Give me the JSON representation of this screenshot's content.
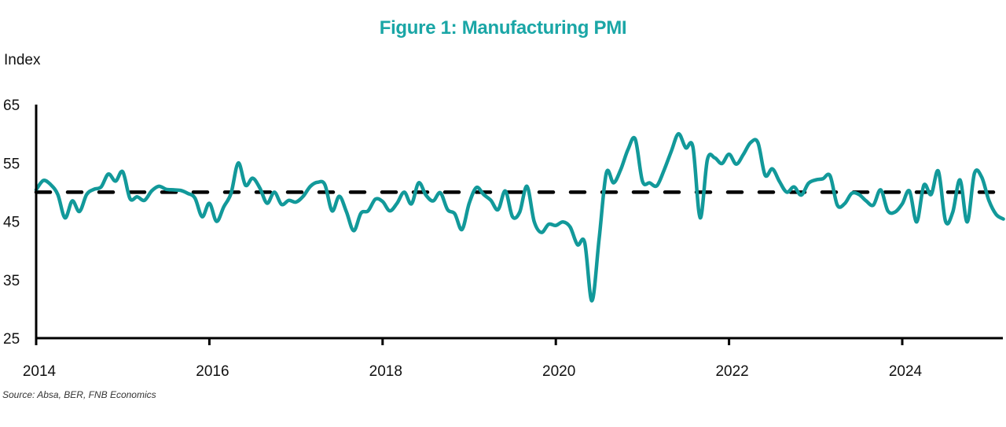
{
  "chart_data": {
    "type": "line",
    "title": "Figure 1: Manufacturing PMI",
    "ylabel": "Index",
    "xlabel": "",
    "source": "Source: Absa, BER, FNB Economics",
    "ylim": [
      25,
      65
    ],
    "yticks": [
      25,
      35,
      45,
      55,
      65
    ],
    "xlim": [
      2014.0,
      2025.17
    ],
    "xticks": [
      2014,
      2016,
      2018,
      2020,
      2022,
      2024
    ],
    "grid": false,
    "legend": "none",
    "reference_line": {
      "value": 50,
      "style": "dashed",
      "color": "#000000"
    },
    "series": [
      {
        "name": "Manufacturing PMI",
        "color": "#12999a",
        "start": "2014-01",
        "frequency": "monthly",
        "values": [
          50.4,
          52.0,
          51.3,
          49.6,
          45.6,
          48.5,
          46.7,
          49.6,
          50.5,
          50.9,
          53.1,
          51.9,
          53.5,
          48.9,
          49.2,
          48.6,
          50.2,
          51.0,
          50.5,
          50.4,
          50.3,
          49.8,
          49.0,
          45.8,
          48.1,
          45.0,
          47.5,
          49.8,
          55.0,
          51.2,
          52.4,
          50.7,
          48.1,
          50.0,
          47.9,
          48.6,
          48.3,
          49.3,
          51.0,
          51.7,
          51.3,
          46.8,
          49.3,
          46.6,
          43.4,
          46.4,
          46.8,
          48.8,
          48.4,
          46.8,
          48.1,
          50.0,
          48.0,
          51.6,
          49.5,
          48.5,
          49.9,
          47.0,
          46.3,
          43.6,
          48.1,
          50.8,
          49.6,
          48.6,
          47.0,
          50.2,
          45.8,
          46.6,
          51.0,
          45.0,
          43.1,
          44.5,
          44.3,
          44.9,
          44.0,
          41.0,
          41.4,
          31.4,
          42.0,
          53.3,
          51.6,
          53.9,
          57.3,
          59.1,
          51.9,
          51.6,
          51.1,
          53.8,
          57.0,
          60.0,
          57.6,
          57.7,
          45.6,
          55.6,
          55.9,
          54.9,
          56.5,
          54.8,
          56.5,
          58.5,
          58.5,
          52.9,
          54.0,
          51.8,
          50.0,
          50.9,
          49.5,
          51.5,
          52.1,
          52.3,
          52.8,
          47.8,
          48.0,
          49.8,
          49.6,
          48.5,
          47.8,
          50.4,
          46.8,
          46.6,
          48.0,
          50.2,
          44.9,
          51.2,
          49.6,
          53.6,
          45.0,
          46.6,
          52.1,
          44.9,
          53.2,
          52.6,
          48.6,
          46.2,
          45.4
        ]
      }
    ]
  }
}
